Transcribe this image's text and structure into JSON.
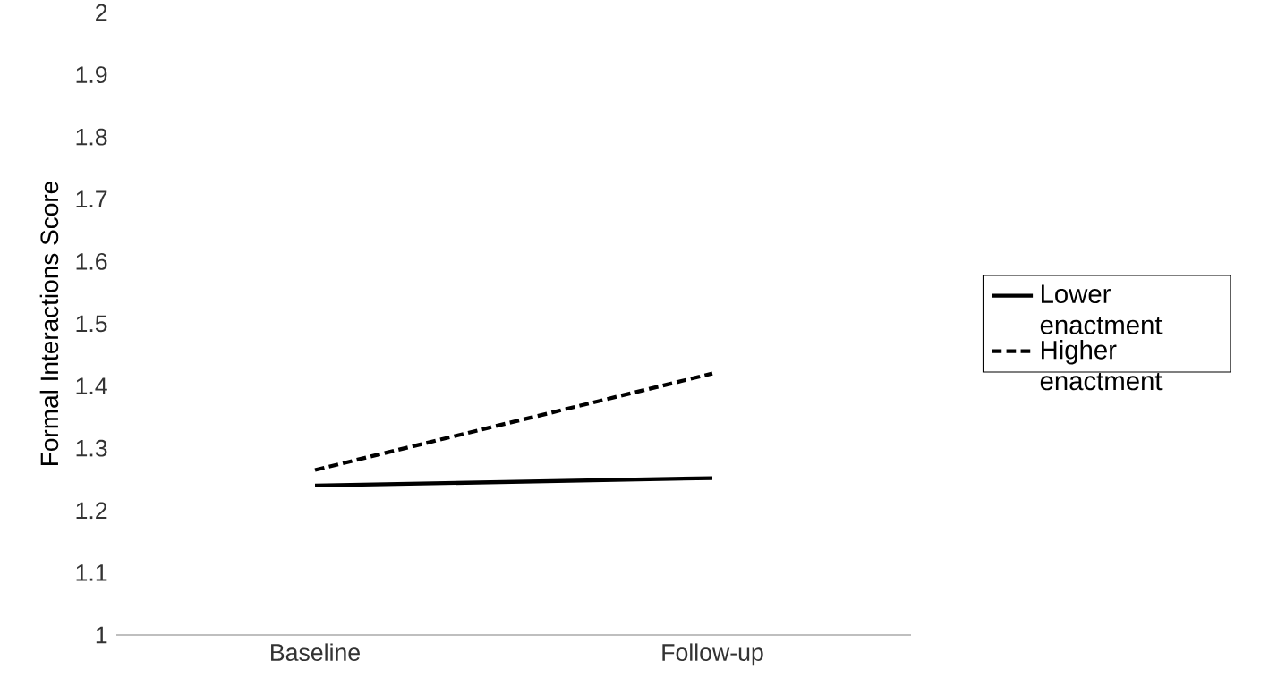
{
  "chart_data": {
    "type": "line",
    "ylabel": "Formal Interactions Score",
    "categories": [
      "Baseline",
      "Follow-up"
    ],
    "series": [
      {
        "name": "Lower enactment",
        "color": "#000000",
        "line_style": "solid",
        "values": [
          1.24,
          1.252
        ]
      },
      {
        "name": "Higher enactment",
        "color": "#000000",
        "line_style": "dashed",
        "values": [
          1.265,
          1.42
        ]
      }
    ],
    "ylim": [
      1,
      2
    ],
    "yticks": [
      1,
      1.1,
      1.2,
      1.3,
      1.4,
      1.5,
      1.6,
      1.7,
      1.8,
      1.9,
      2
    ],
    "grid": false,
    "legend": "right",
    "marker": "none"
  }
}
